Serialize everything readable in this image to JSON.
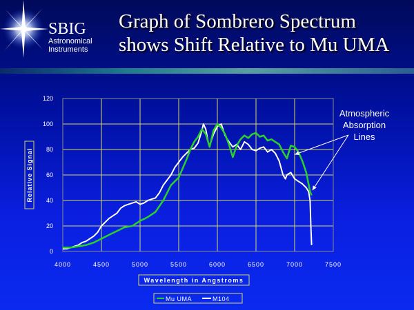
{
  "brand": {
    "name": "SBIG",
    "line1": "Astronomical",
    "line2": "Instruments"
  },
  "title": {
    "line1": "Graph of Sombrero Spectrum",
    "line2": "shows Shift Relative to Mu UMA"
  },
  "colors": {
    "mu_uma": "#2bd12b",
    "m104": "#ffffff",
    "grid": "#d8d860",
    "background": "#0a1aa8"
  },
  "annotation": {
    "lines": [
      "Atmospheric",
      "Absorption",
      "Lines"
    ],
    "targets": [
      {
        "x": 7000,
        "y": 76
      },
      {
        "x": 7230,
        "y": 48
      }
    ]
  },
  "chart_data": {
    "type": "line",
    "title": "",
    "xlabel": "Wavelength in Angstroms",
    "ylabel": "Relative Signal",
    "xlim": [
      4000,
      7500
    ],
    "ylim": [
      0,
      120
    ],
    "xticks": [
      "4000",
      "4500",
      "5000",
      "5500",
      "6000",
      "6500",
      "7000",
      "7500"
    ],
    "yticks": [
      "0",
      "20",
      "40",
      "60",
      "80",
      "100",
      "120"
    ],
    "grid": true,
    "legend": "bottom",
    "series": [
      {
        "name": "Mu UMA",
        "color": "#2bd12b",
        "x": [
          4000,
          4100,
          4200,
          4300,
          4400,
          4500,
          4600,
          4700,
          4800,
          4900,
          5000,
          5100,
          5200,
          5300,
          5400,
          5500,
          5550,
          5600,
          5650,
          5700,
          5750,
          5800,
          5850,
          5900,
          5950,
          6000,
          6050,
          6100,
          6150,
          6200,
          6250,
          6300,
          6350,
          6400,
          6450,
          6500,
          6550,
          6600,
          6650,
          6700,
          6750,
          6800,
          6850,
          6900,
          6950,
          7000,
          7050,
          7100,
          7150,
          7200,
          7220
        ],
        "y": [
          3,
          3,
          4,
          5,
          7,
          10,
          13,
          16,
          19,
          20,
          24,
          27,
          31,
          40,
          52,
          58,
          65,
          72,
          80,
          86,
          90,
          96,
          92,
          82,
          95,
          100,
          97,
          92,
          84,
          74,
          83,
          88,
          91,
          89,
          92,
          93,
          90,
          91,
          87,
          88,
          86,
          84,
          78,
          73,
          83,
          82,
          78,
          71,
          62,
          47,
          44
        ]
      },
      {
        "name": "M104",
        "color": "#ffffff",
        "x": [
          4000,
          4050,
          4100,
          4150,
          4200,
          4250,
          4300,
          4350,
          4400,
          4450,
          4500,
          4550,
          4600,
          4650,
          4700,
          4750,
          4800,
          4850,
          4900,
          4950,
          5000,
          5050,
          5100,
          5150,
          5200,
          5250,
          5300,
          5350,
          5400,
          5450,
          5500,
          5550,
          5600,
          5650,
          5700,
          5750,
          5800,
          5820,
          5850,
          5880,
          5900,
          5950,
          6000,
          6050,
          6100,
          6150,
          6200,
          6250,
          6300,
          6350,
          6400,
          6450,
          6500,
          6550,
          6600,
          6650,
          6700,
          6750,
          6800,
          6850,
          6880,
          6900,
          6950,
          7000,
          7050,
          7100,
          7150,
          7180,
          7200,
          7210,
          7220
        ],
        "y": [
          2,
          2,
          3,
          4,
          5,
          7,
          8,
          10,
          12,
          15,
          20,
          23,
          26,
          28,
          30,
          34,
          36,
          37,
          38,
          39,
          37,
          38,
          40,
          41,
          42,
          46,
          52,
          56,
          60,
          66,
          70,
          74,
          77,
          80,
          81,
          85,
          95,
          100,
          96,
          86,
          83,
          92,
          98,
          100,
          91,
          86,
          82,
          84,
          80,
          86,
          84,
          80,
          79,
          81,
          82,
          78,
          80,
          77,
          71,
          60,
          57,
          60,
          62,
          57,
          55,
          53,
          50,
          47,
          40,
          20,
          5
        ]
      }
    ]
  }
}
